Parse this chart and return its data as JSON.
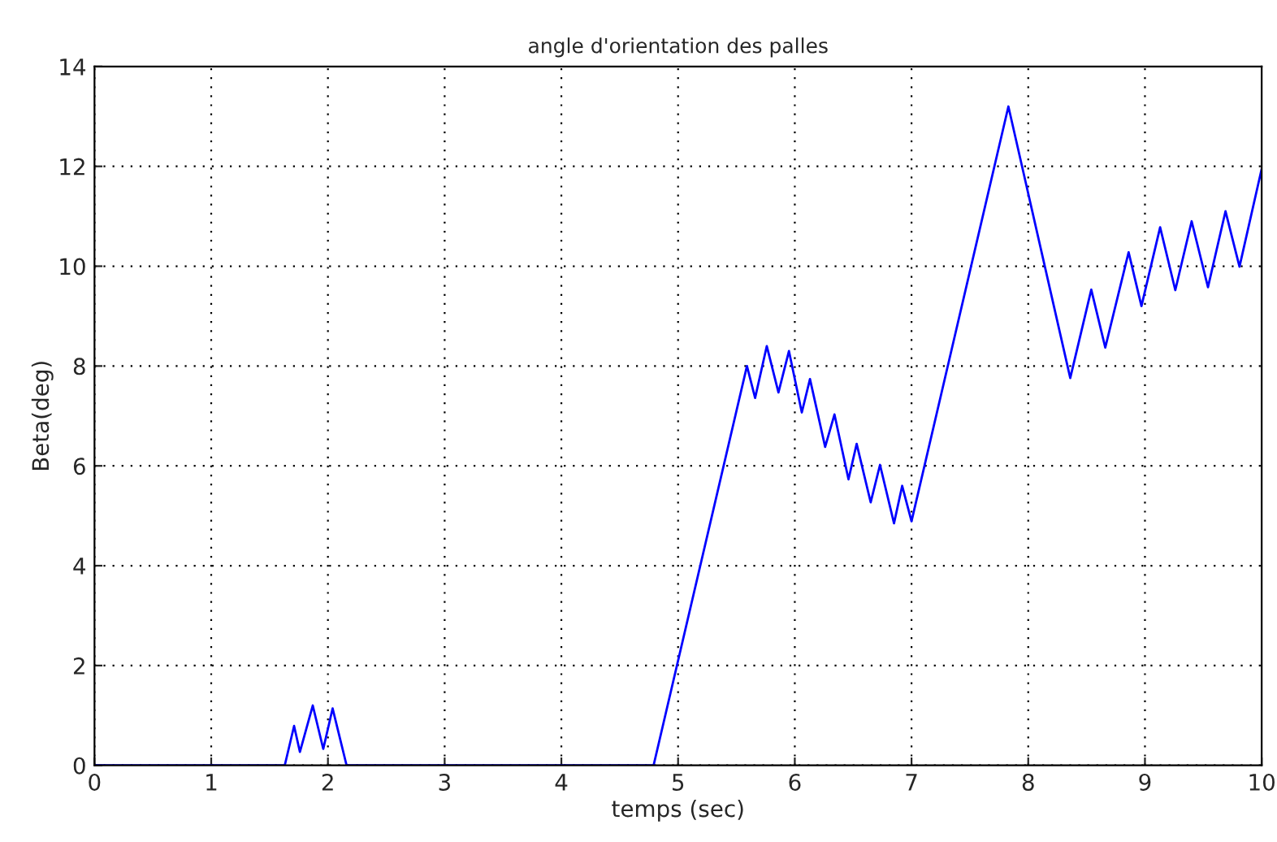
{
  "chart_data": {
    "type": "line",
    "title": "angle d'orientation des palles",
    "xlabel": "temps (sec)",
    "ylabel": "Beta(deg)",
    "series": [
      {
        "color": "#0000ff",
        "x": [
          0,
          1.63,
          1.71,
          1.76,
          1.87,
          1.96,
          2.04,
          2.16,
          4.79,
          5.59,
          5.66,
          5.76,
          5.86,
          5.95,
          6.06,
          6.13,
          6.26,
          6.34,
          6.46,
          6.53,
          6.65,
          6.73,
          6.85,
          6.92,
          7.0,
          7.83,
          8.36,
          8.54,
          8.66,
          8.86,
          8.97,
          9.13,
          9.26,
          9.4,
          9.54,
          9.69,
          9.81,
          10.0
        ],
        "values": [
          0,
          0,
          0.79,
          0.27,
          1.2,
          0.33,
          1.14,
          0,
          0,
          8.0,
          7.36,
          8.4,
          7.47,
          8.3,
          7.07,
          7.74,
          6.38,
          7.03,
          5.73,
          6.44,
          5.27,
          6.02,
          4.85,
          5.6,
          4.89,
          13.2,
          7.76,
          9.53,
          8.37,
          10.28,
          9.2,
          10.78,
          9.52,
          10.9,
          9.58,
          11.1,
          9.99,
          11.95
        ]
      }
    ],
    "xlim": [
      0,
      10
    ],
    "ylim": [
      0,
      14
    ],
    "xticks": [
      0,
      1,
      2,
      3,
      4,
      5,
      6,
      7,
      8,
      9,
      10
    ],
    "yticks": [
      0,
      2,
      4,
      6,
      8,
      10,
      12,
      14
    ],
    "grid": true,
    "line_style": "solid",
    "marker": "none"
  }
}
